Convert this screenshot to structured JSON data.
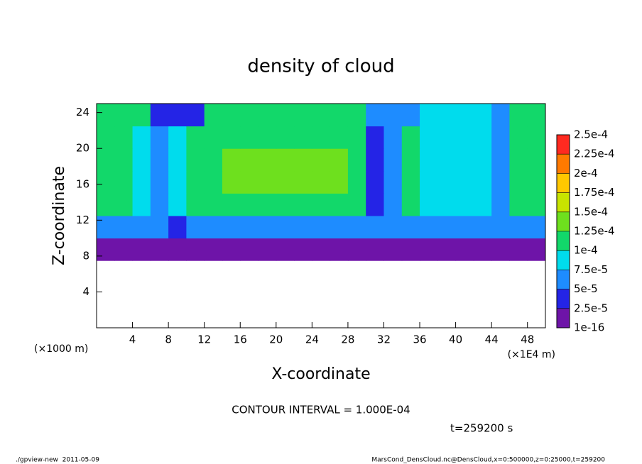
{
  "chart_data": {
    "type": "heatmap",
    "title": "density of cloud",
    "x_label": "X-coordinate",
    "y_label": "Z-coordinate",
    "y_unit": "(×1000 m)",
    "x_unit": "(×1E4 m)",
    "contour_note": "CONTOUR INTERVAL = 1.000E-04",
    "time_note": "t=259200 s",
    "footer_left": "./gpview-new  2011-05-09",
    "footer_right": "MarsCond_DensCloud.nc@DensCloud,x=0:500000,z=0:25000,t=259200",
    "xlim": [
      0,
      50
    ],
    "xticks": [
      4,
      8,
      12,
      16,
      20,
      24,
      28,
      32,
      36,
      40,
      44,
      48
    ],
    "ylim": [
      0,
      25
    ],
    "yticks": [
      4,
      8,
      12,
      16,
      20,
      24
    ],
    "x": [
      1,
      3,
      5,
      7,
      9,
      11,
      13,
      15,
      17,
      19,
      21,
      23,
      25,
      27,
      29,
      31,
      33,
      35,
      37,
      39,
      41,
      43,
      45,
      47,
      49
    ],
    "z": [
      1.25,
      3.75,
      6.25,
      8.75,
      11.25,
      13.75,
      16.25,
      18.75,
      21.25,
      23.75
    ],
    "values": [
      [
        null,
        null,
        null,
        null,
        null,
        null,
        null,
        null,
        null,
        null,
        null,
        null,
        null,
        null,
        null,
        null,
        null,
        null,
        null,
        null,
        null,
        null,
        null,
        null,
        null
      ],
      [
        null,
        null,
        null,
        null,
        null,
        null,
        null,
        null,
        null,
        null,
        null,
        null,
        null,
        null,
        null,
        null,
        null,
        null,
        null,
        null,
        null,
        null,
        null,
        null,
        null
      ],
      [
        null,
        null,
        null,
        null,
        null,
        null,
        null,
        null,
        null,
        null,
        null,
        null,
        null,
        null,
        null,
        null,
        null,
        null,
        null,
        null,
        null,
        null,
        null,
        null,
        null
      ],
      [
        1e-05,
        1e-05,
        1e-05,
        1e-05,
        1e-05,
        1e-05,
        1e-05,
        1e-05,
        1e-05,
        1e-05,
        1e-05,
        1e-05,
        1e-05,
        1e-05,
        1e-05,
        1e-05,
        1e-05,
        1e-05,
        1e-05,
        1e-05,
        1e-05,
        1e-05,
        1e-05,
        1e-05,
        1e-05
      ],
      [
        6e-05,
        6e-05,
        6e-05,
        6e-05,
        4e-05,
        6e-05,
        6e-05,
        6e-05,
        6e-05,
        6e-05,
        6e-05,
        6e-05,
        6e-05,
        6e-05,
        6e-05,
        6e-05,
        6e-05,
        6e-05,
        6e-05,
        6e-05,
        6e-05,
        6e-05,
        6e-05,
        6e-05,
        6e-05
      ],
      [
        0.00011,
        0.00011,
        9e-05,
        5e-05,
        8e-05,
        0.00011,
        0.00011,
        0.00011,
        0.00011,
        0.00011,
        0.00011,
        0.00011,
        0.00011,
        0.00011,
        0.00011,
        4e-05,
        7e-05,
        0.00011,
        9e-05,
        9e-05,
        9e-05,
        9e-05,
        5e-05,
        0.00011,
        0.00011
      ],
      [
        0.00011,
        0.00011,
        9e-05,
        5e-05,
        8e-05,
        0.00011,
        0.00011,
        0.00013,
        0.00013,
        0.00013,
        0.00013,
        0.00013,
        0.00013,
        0.00013,
        0.00011,
        4e-05,
        7e-05,
        0.00011,
        9e-05,
        9e-05,
        9e-05,
        9e-05,
        5e-05,
        0.00011,
        0.00011
      ],
      [
        0.00011,
        0.00011,
        9e-05,
        5e-05,
        8e-05,
        0.00011,
        0.00011,
        0.00013,
        0.00013,
        0.00013,
        0.00013,
        0.00013,
        0.00013,
        0.00013,
        0.00011,
        4e-05,
        7e-05,
        0.00011,
        9e-05,
        9e-05,
        9e-05,
        9e-05,
        5e-05,
        0.00011,
        0.00011
      ],
      [
        0.00011,
        0.00011,
        9e-05,
        5e-05,
        8e-05,
        0.00011,
        0.00011,
        0.00011,
        0.00011,
        0.00011,
        0.00011,
        0.00011,
        0.00011,
        0.00011,
        0.00011,
        4e-05,
        7e-05,
        0.00011,
        9e-05,
        9e-05,
        9e-05,
        9e-05,
        5e-05,
        0.00011,
        0.00011
      ],
      [
        0.00011,
        0.00011,
        0.00011,
        4e-05,
        4e-05,
        4e-05,
        0.00011,
        0.00011,
        0.00011,
        0.00011,
        0.00011,
        0.00011,
        0.00011,
        0.00011,
        0.00011,
        5e-05,
        5e-05,
        5e-05,
        8e-05,
        8e-05,
        8e-05,
        8e-05,
        5e-05,
        0.00011,
        0.00011
      ]
    ],
    "colorbar_ticks": [
      {
        "value": 1e-16,
        "label": "1e-16"
      },
      {
        "value": 2.5e-05,
        "label": "2.5e-5"
      },
      {
        "value": 5e-05,
        "label": "5e-5"
      },
      {
        "value": 7.5e-05,
        "label": "7.5e-5"
      },
      {
        "value": 0.0001,
        "label": "1e-4"
      },
      {
        "value": 0.000125,
        "label": "1.25e-4"
      },
      {
        "value": 0.00015,
        "label": "1.5e-4"
      },
      {
        "value": 0.000175,
        "label": "1.75e-4"
      },
      {
        "value": 0.0002,
        "label": "2e-4"
      },
      {
        "value": 0.000225,
        "label": "2.25e-4"
      },
      {
        "value": 0.00025,
        "label": "2.5e-4"
      }
    ],
    "colors": [
      "#6e14a8",
      "#2424e6",
      "#1e8cff",
      "#00dced",
      "#12d86a",
      "#6ee01e",
      "#c8e400",
      "#ffc800",
      "#ff7a00",
      "#ff2a20"
    ],
    "top_color": "#ff8a8a"
  }
}
